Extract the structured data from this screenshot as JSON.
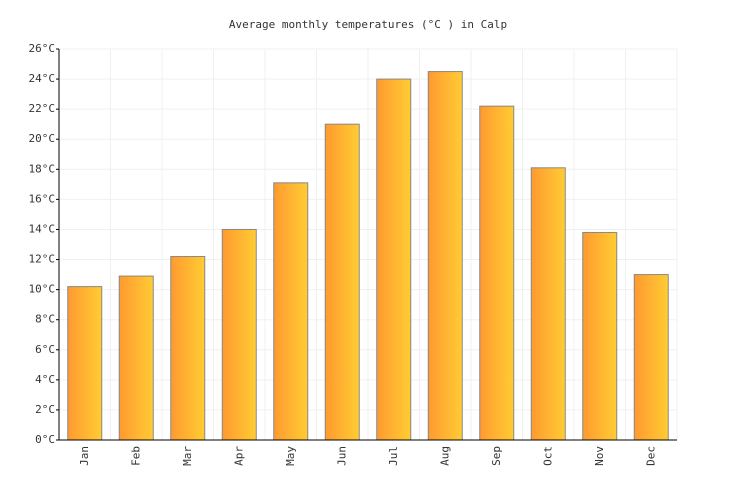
{
  "chart_data": {
    "type": "bar",
    "title": "Average monthly temperatures (°C ) in Calp",
    "categories": [
      "Jan",
      "Feb",
      "Mar",
      "Apr",
      "May",
      "Jun",
      "Jul",
      "Aug",
      "Sep",
      "Oct",
      "Nov",
      "Dec"
    ],
    "values": [
      10.2,
      10.9,
      12.2,
      14.0,
      17.1,
      21.0,
      24.0,
      24.5,
      22.2,
      18.1,
      13.8,
      11.0
    ],
    "color": "#ffb030",
    "ylim": [
      0,
      26
    ],
    "yticks": [
      {
        "value": 0,
        "label": "0°C"
      },
      {
        "value": 2,
        "label": "2°C"
      },
      {
        "value": 4,
        "label": "4°C"
      },
      {
        "value": 6,
        "label": "6°C"
      },
      {
        "value": 8,
        "label": "8°C"
      },
      {
        "value": 10,
        "label": "10°C"
      },
      {
        "value": 12,
        "label": "12°C"
      },
      {
        "value": 14,
        "label": "14°C"
      },
      {
        "value": 16,
        "label": "16°C"
      },
      {
        "value": 18,
        "label": "18°C"
      },
      {
        "value": 20,
        "label": "20°C"
      },
      {
        "value": 22,
        "label": "22°C"
      },
      {
        "value": 24,
        "label": "24°C"
      },
      {
        "value": 26,
        "label": "26°C"
      }
    ],
    "grid": true
  }
}
